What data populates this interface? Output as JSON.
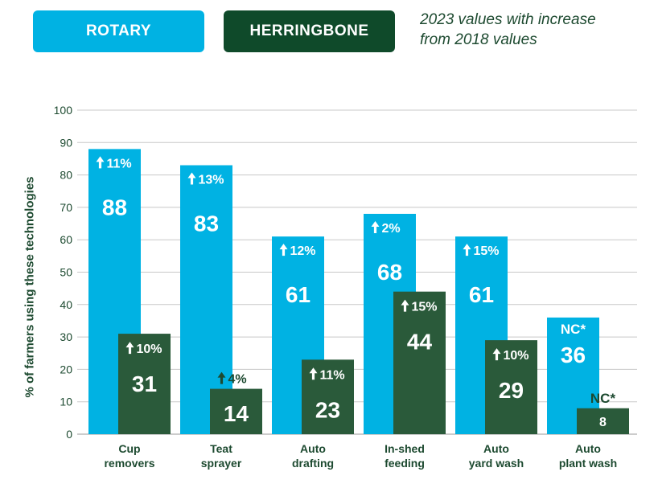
{
  "legend": {
    "rotary": "ROTARY",
    "herringbone": "HERRINGBONE"
  },
  "caption_line1": "2023 values with increase",
  "caption_line2": "from 2018 values",
  "colors": {
    "rotary": "#00b2e3",
    "herringbone": "#2a5a3a",
    "text_dark": "#1d4a30",
    "grid": "#c8c8c8"
  },
  "chart_data": {
    "type": "bar",
    "title": "",
    "ylabel": "% of farmers using these technologies",
    "xlabel": "",
    "ylim": [
      0,
      100
    ],
    "yticks": [
      0,
      10,
      20,
      30,
      40,
      50,
      60,
      70,
      80,
      90,
      100
    ],
    "grid": true,
    "categories": [
      [
        "Cup",
        "removers"
      ],
      [
        "Teat",
        "sprayer"
      ],
      [
        "Auto",
        "drafting"
      ],
      [
        "In-shed",
        "feeding"
      ],
      [
        "Auto",
        "yard wash"
      ],
      [
        "Auto",
        "plant wash"
      ]
    ],
    "series": [
      {
        "name": "ROTARY",
        "values": [
          88,
          83,
          61,
          68,
          61,
          36
        ],
        "change_labels": [
          "11%",
          "13%",
          "12%",
          "2%",
          "15%",
          "NC*"
        ]
      },
      {
        "name": "HERRINGBONE",
        "values": [
          31,
          14,
          23,
          44,
          29,
          8
        ],
        "change_labels": [
          "10%",
          "4%",
          "11%",
          "15%",
          "10%",
          "NC*"
        ]
      }
    ]
  }
}
